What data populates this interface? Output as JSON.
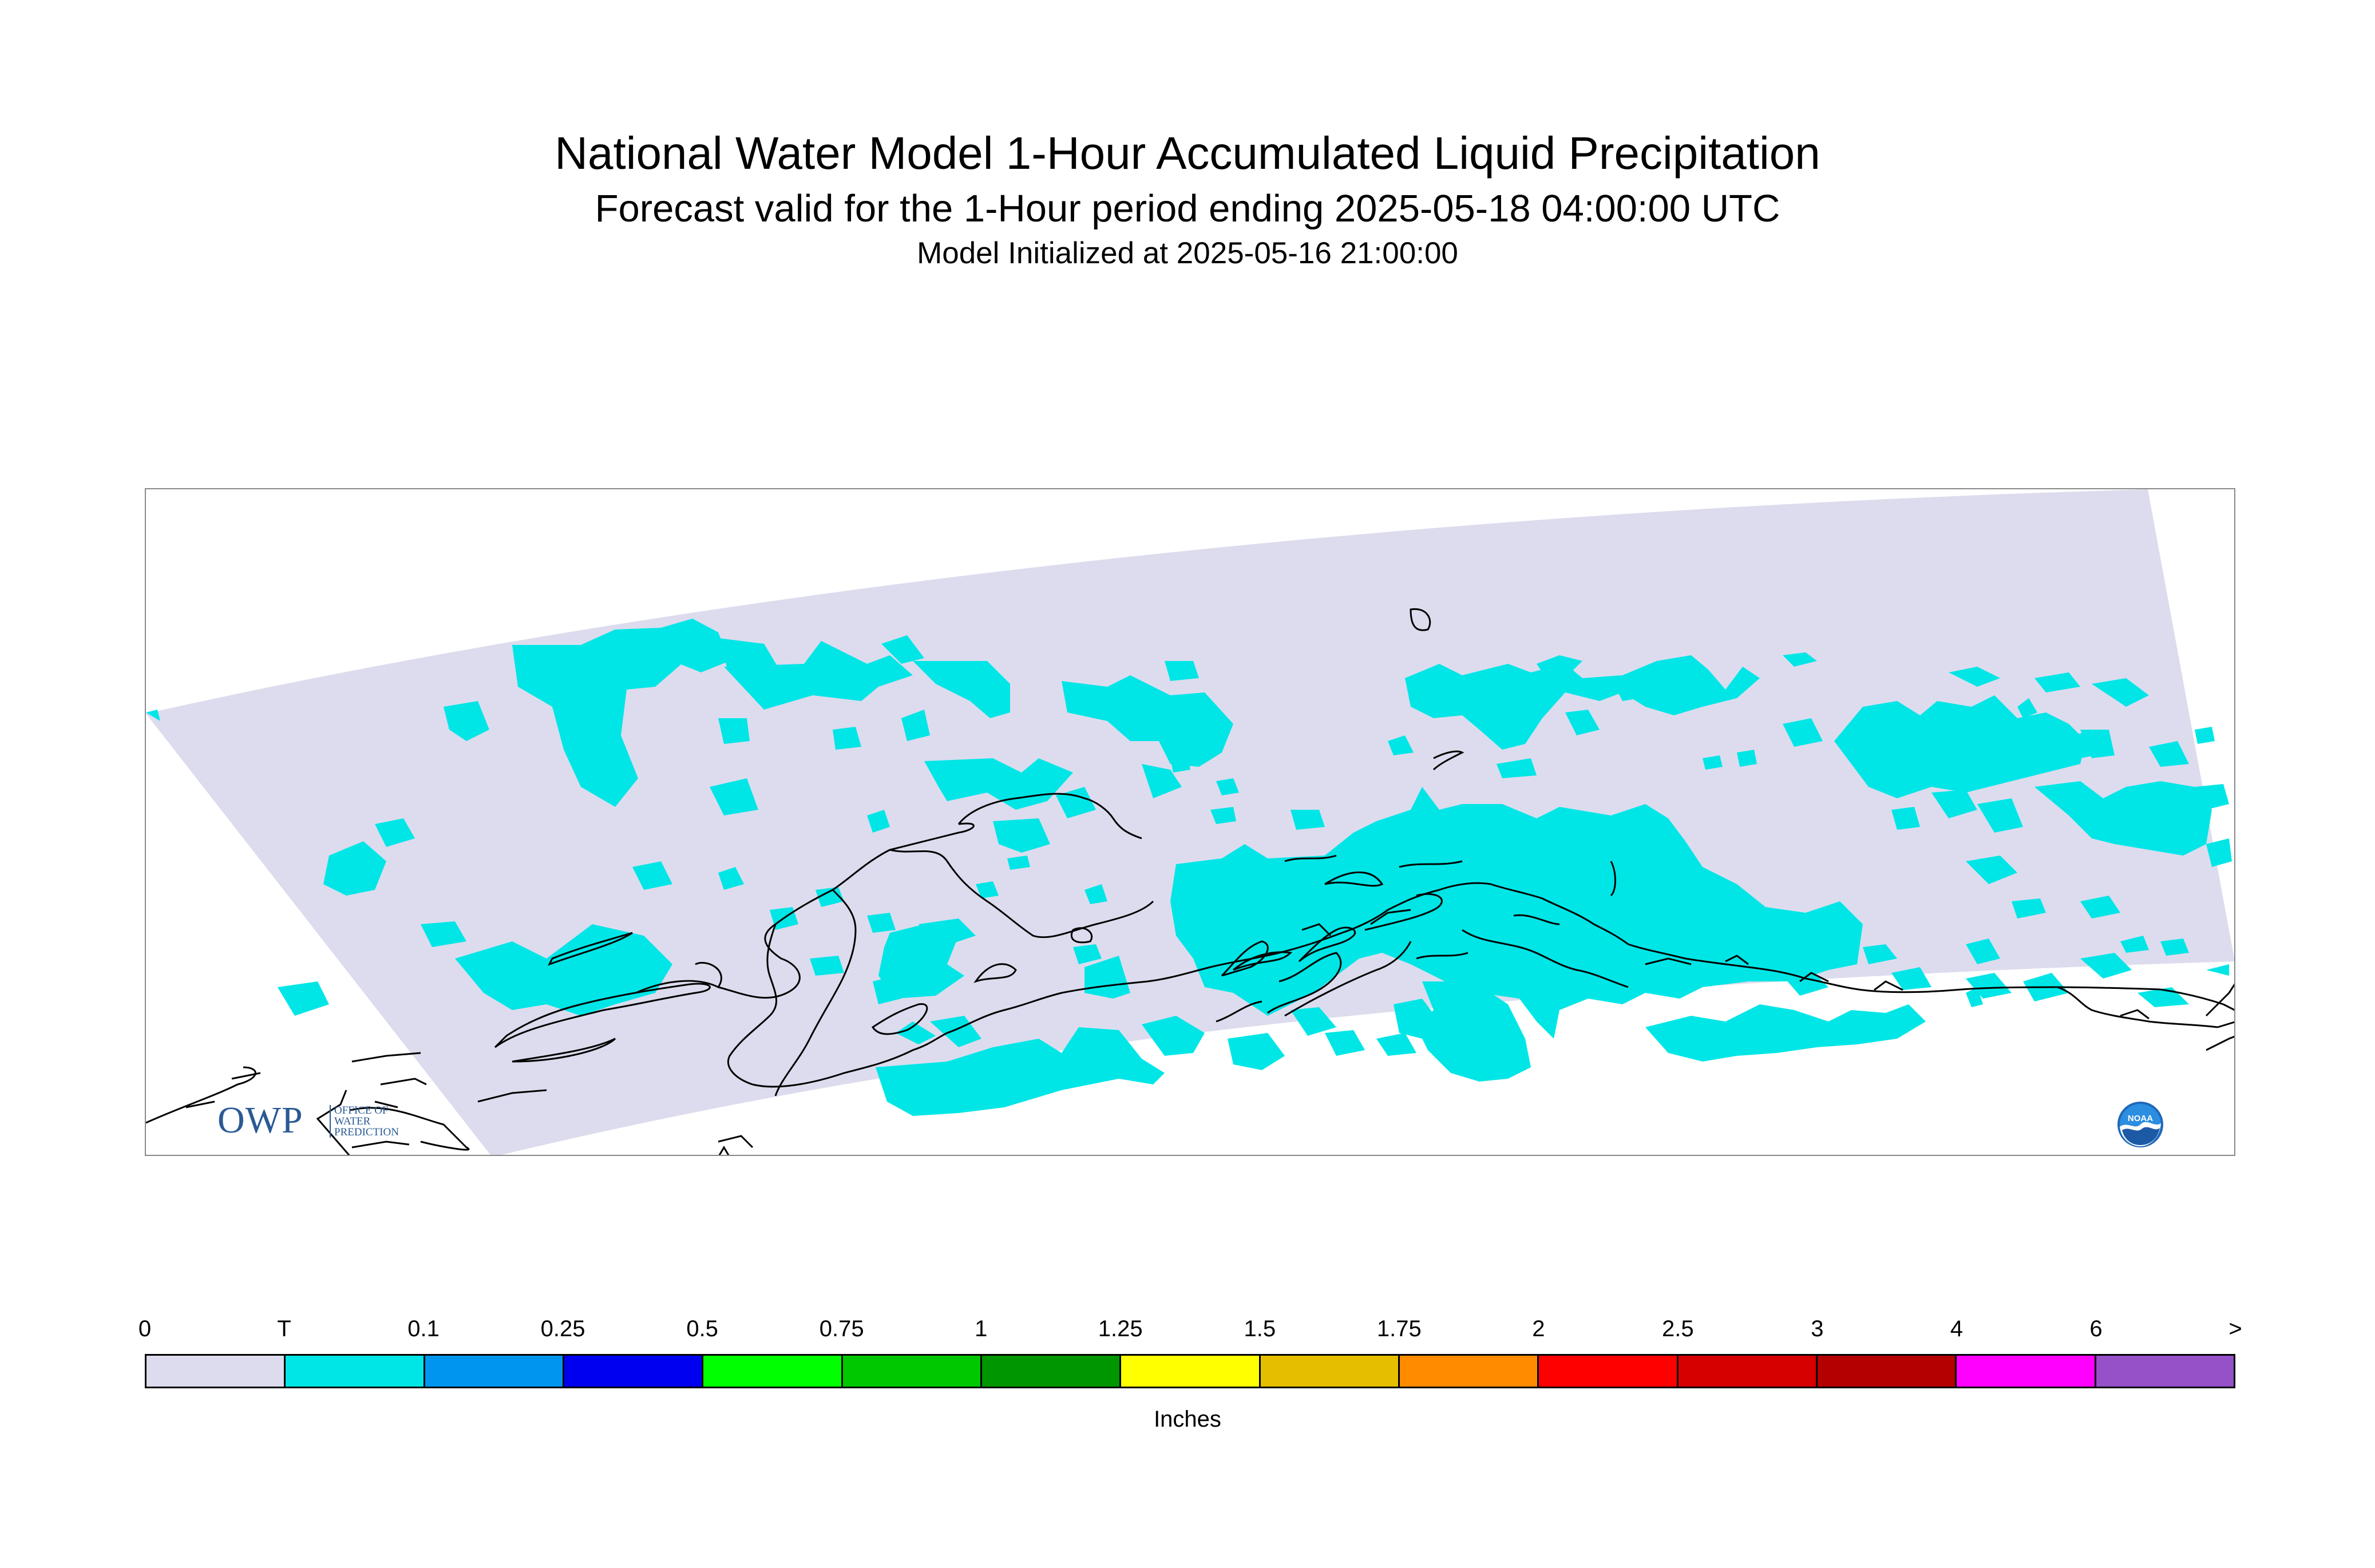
{
  "title": "National Water Model 1-Hour Accumulated Liquid Precipitation",
  "subtitle": "Forecast valid for the 1-Hour period ending 2025-05-18 04:00:00 UTC",
  "init_line": "Model Initialized at 2025-05-16 21:00:00",
  "logos": {
    "owp_letters": "OWP",
    "owp_tagline": [
      "OFFICE OF",
      "WATER",
      "PREDICTION"
    ],
    "noaa": "NOAA"
  },
  "legend": {
    "units": "Inches",
    "tick_labels": [
      "0",
      "T",
      "0.1",
      "0.25",
      "0.5",
      "0.75",
      "1",
      "1.25",
      "1.5",
      "1.75",
      "2",
      "2.5",
      "3",
      "4",
      "6",
      ">"
    ],
    "colors": [
      "#dcdcee",
      "#00e6e6",
      "#0096f0",
      "#0000f0",
      "#00ff00",
      "#00c800",
      "#009600",
      "#ffff00",
      "#e6be00",
      "#ff8c00",
      "#ff0000",
      "#d70000",
      "#b40000",
      "#ff00ff",
      "#9650c8"
    ]
  },
  "map": {
    "domain_fill": "#dcdcee",
    "precip_fill": "#00e6e6",
    "coastline_color": "#000000",
    "observed_category": "T"
  }
}
